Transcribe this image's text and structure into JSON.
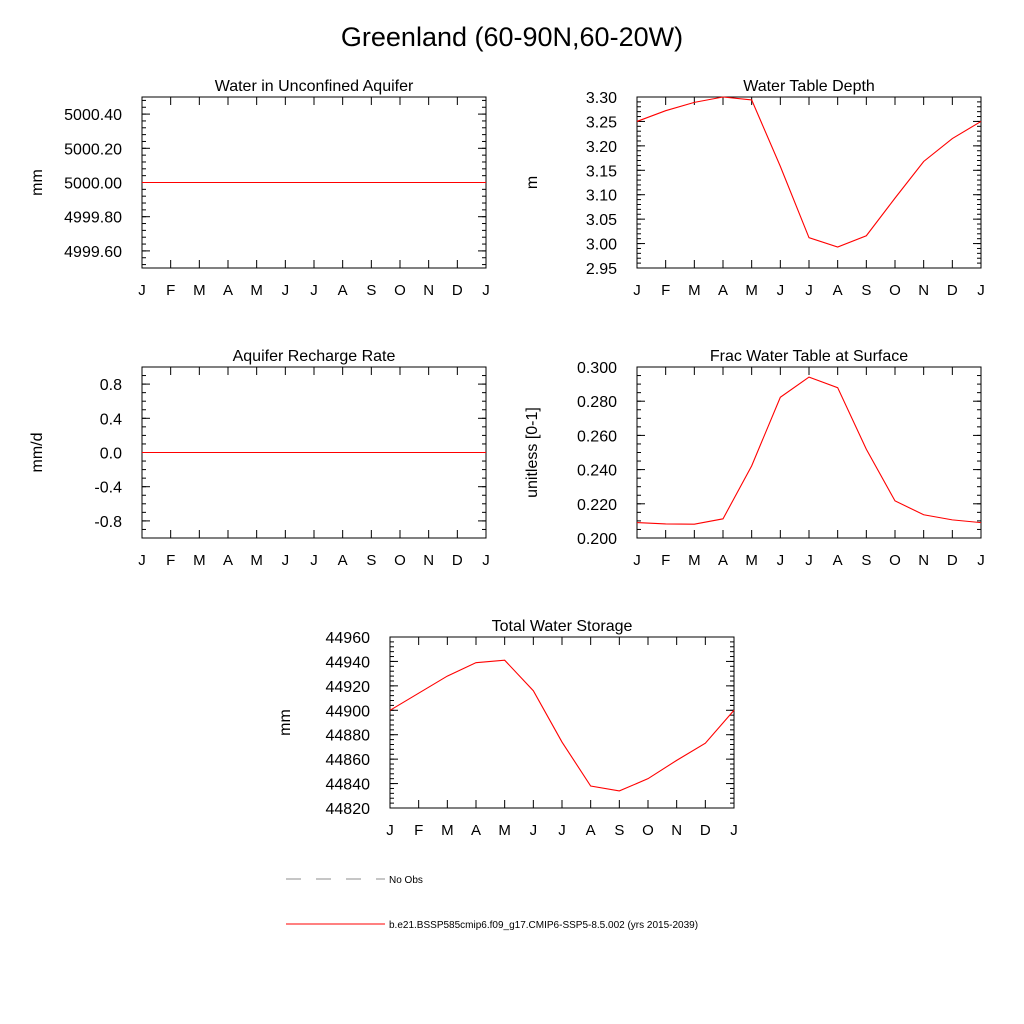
{
  "title": "Greenland (60-90N,60-20W)",
  "colors": {
    "model_line": "#ff0000",
    "obs_line": "#8c8c8c",
    "axis": "#000000"
  },
  "chart_data": [
    {
      "type": "line",
      "title": "Water in Unconfined Aquifer",
      "ylabel": "mm",
      "xlabel": "",
      "categories": [
        "J",
        "F",
        "M",
        "A",
        "M",
        "J",
        "J",
        "A",
        "S",
        "O",
        "N",
        "D",
        "J"
      ],
      "ylim": [
        4999.5,
        5000.5
      ],
      "yticks": [
        4999.6,
        4999.8,
        5000.0,
        5000.2,
        5000.4
      ],
      "ytick_labels": [
        "4999.60",
        "4999.80",
        "5000.00",
        "5000.20",
        "5000.40"
      ],
      "yminor_step": 0.04,
      "grid": false,
      "series": [
        {
          "values": [
            5000,
            5000,
            5000,
            5000,
            5000,
            5000,
            5000,
            5000,
            5000,
            5000,
            5000,
            5000,
            5000
          ]
        }
      ]
    },
    {
      "type": "line",
      "title": "Water Table Depth",
      "ylabel": "m",
      "xlabel": "",
      "categories": [
        "J",
        "F",
        "M",
        "A",
        "M",
        "J",
        "J",
        "A",
        "S",
        "O",
        "N",
        "D",
        "J"
      ],
      "ylim": [
        2.95,
        3.3
      ],
      "yticks": [
        2.95,
        3.0,
        3.05,
        3.1,
        3.15,
        3.2,
        3.25,
        3.3
      ],
      "ytick_labels": [
        "2.95",
        "3.00",
        "3.05",
        "3.10",
        "3.15",
        "3.20",
        "3.25",
        "3.30"
      ],
      "yminor_step": 0.01,
      "grid": false,
      "series": [
        {
          "values": [
            3.25,
            3.272,
            3.289,
            3.3,
            3.294,
            3.158,
            3.012,
            2.993,
            3.016,
            3.093,
            3.168,
            3.215,
            3.25
          ]
        }
      ]
    },
    {
      "type": "line",
      "title": "Aquifer Recharge Rate",
      "ylabel": "mm/d",
      "xlabel": "",
      "categories": [
        "J",
        "F",
        "M",
        "A",
        "M",
        "J",
        "J",
        "A",
        "S",
        "O",
        "N",
        "D",
        "J"
      ],
      "ylim": [
        -1.0,
        1.0
      ],
      "yticks": [
        -0.8,
        -0.4,
        0.0,
        0.4,
        0.8
      ],
      "ytick_labels": [
        "-0.8",
        "-0.4",
        "0.0",
        "0.4",
        "0.8"
      ],
      "yminor_step": 0.1,
      "grid": false,
      "series": [
        {
          "values": [
            0,
            0,
            0,
            0,
            0,
            0,
            0,
            0,
            0,
            0,
            0,
            0,
            0
          ]
        }
      ]
    },
    {
      "type": "line",
      "title": "Frac Water Table at Surface",
      "ylabel": "unitless [0-1]",
      "xlabel": "",
      "categories": [
        "J",
        "F",
        "M",
        "A",
        "M",
        "J",
        "J",
        "A",
        "S",
        "O",
        "N",
        "D",
        "J"
      ],
      "ylim": [
        0.2,
        0.3
      ],
      "yticks": [
        0.2,
        0.22,
        0.24,
        0.26,
        0.28,
        0.3
      ],
      "ytick_labels": [
        "0.200",
        "0.220",
        "0.240",
        "0.260",
        "0.280",
        "0.300"
      ],
      "yminor_step": 0.005,
      "grid": false,
      "series": [
        {
          "values": [
            0.209,
            0.2082,
            0.2081,
            0.2112,
            0.2422,
            0.2823,
            0.2941,
            0.2879,
            0.2519,
            0.2217,
            0.2136,
            0.2106,
            0.209
          ]
        }
      ]
    },
    {
      "type": "line",
      "title": "Total Water Storage",
      "ylabel": "mm",
      "xlabel": "",
      "categories": [
        "J",
        "F",
        "M",
        "A",
        "M",
        "J",
        "J",
        "A",
        "S",
        "O",
        "N",
        "D",
        "J"
      ],
      "ylim": [
        44820,
        44960
      ],
      "yticks": [
        44820,
        44840,
        44860,
        44880,
        44900,
        44920,
        44940,
        44960
      ],
      "ytick_labels": [
        "44820",
        "44840",
        "44860",
        "44880",
        "44900",
        "44920",
        "44940",
        "44960"
      ],
      "yminor_step": 4,
      "grid": false,
      "series": [
        {
          "values": [
            44900,
            44914,
            44928,
            44939,
            44941,
            44916,
            44874,
            44838,
            44834,
            44844,
            44859,
            44873,
            44900
          ]
        }
      ]
    }
  ],
  "legend": {
    "placement": "bottom",
    "items": [
      {
        "label": "No Obs",
        "style": "dashed"
      },
      {
        "label": "b.e21.BSSP585cmip6.f09_g17.CMIP6-SSP5-8.5.002 (yrs 2015-2039)",
        "style": "solid"
      }
    ]
  }
}
